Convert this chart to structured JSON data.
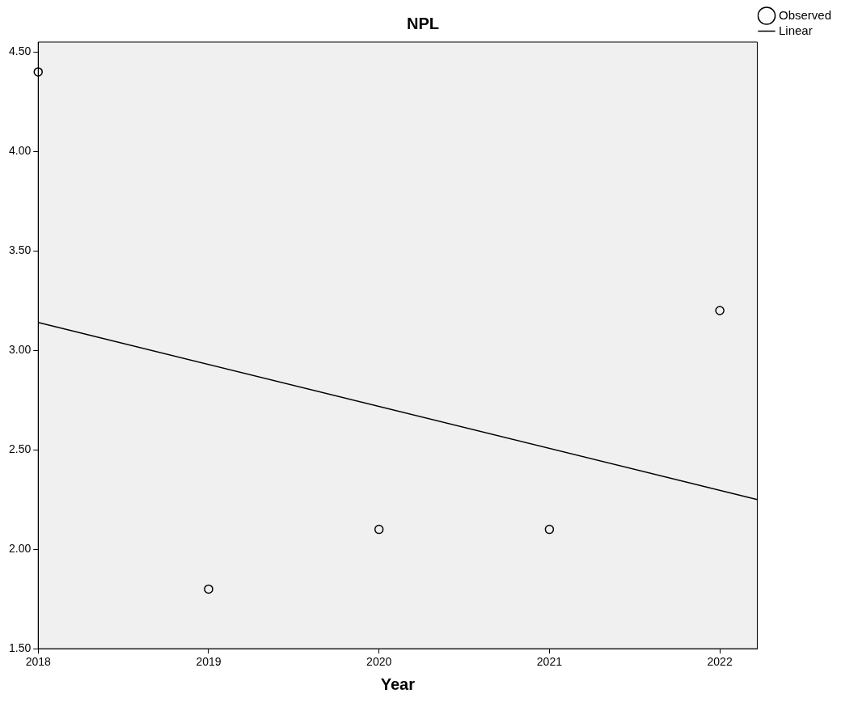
{
  "chart_data": {
    "type": "scatter",
    "title": "NPL",
    "xlabel": "Year",
    "series": [
      {
        "name": "Observed",
        "type": "scatter",
        "marker": "circle",
        "color": "#000000",
        "x": [
          2018,
          2019,
          2020,
          2021,
          2022
        ],
        "values": [
          4.4,
          1.8,
          2.1,
          2.1,
          3.2
        ]
      },
      {
        "name": "Linear",
        "type": "line",
        "marker": "none",
        "color": "#000000",
        "x": [
          2018,
          2022.22
        ],
        "values": [
          3.14,
          2.25
        ]
      }
    ],
    "xlim": [
      2018,
      2022.22
    ],
    "xticks": [
      2018,
      2019,
      2020,
      2021,
      2022
    ],
    "ylim": [
      1.5,
      4.55
    ],
    "yticks": [
      {
        "value": 1.5,
        "label": "1.50"
      },
      {
        "value": 2,
        "label": "2.00"
      },
      {
        "value": 2.5,
        "label": "2.50"
      },
      {
        "value": 3,
        "label": "3.00"
      },
      {
        "value": 3.5,
        "label": "3.50"
      },
      {
        "value": 4,
        "label": "4.00"
      },
      {
        "value": 4.5,
        "label": "4.50"
      }
    ],
    "grid": false,
    "legend": "top right"
  }
}
